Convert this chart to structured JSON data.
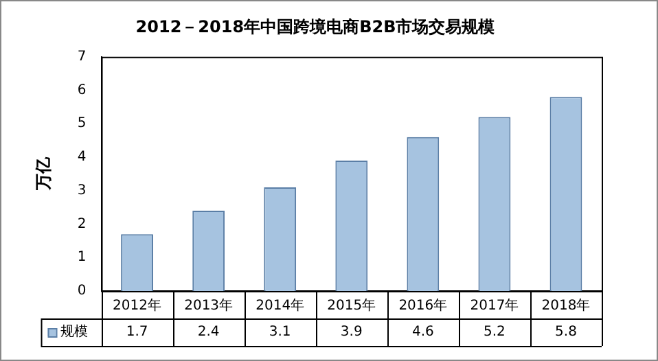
{
  "chart_data": {
    "type": "bar",
    "title": "2012－2018年中国跨境电商B2B市场交易规模",
    "ylabel": "万亿",
    "categories": [
      "2012年",
      "2013年",
      "2014年",
      "2015年",
      "2016年",
      "2017年",
      "2018年"
    ],
    "series": [
      {
        "name": "规模",
        "color": "#a6c3e0",
        "values": [
          1.7,
          2.4,
          3.1,
          3.9,
          4.6,
          5.2,
          5.8
        ]
      }
    ],
    "ylim": [
      0,
      7
    ],
    "yticks": [
      0,
      1,
      2,
      3,
      4,
      5,
      6,
      7
    ],
    "grid": false,
    "legend": "bottom",
    "data_labels": true
  }
}
